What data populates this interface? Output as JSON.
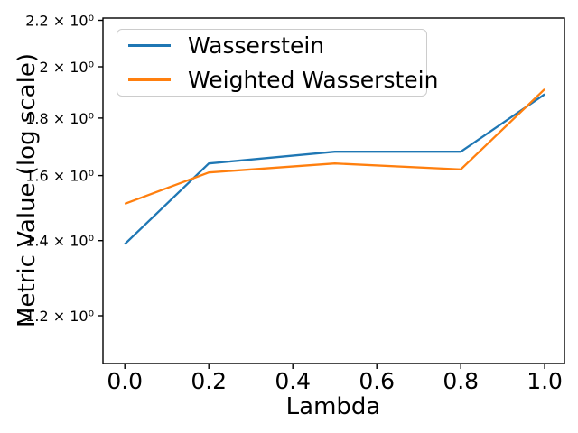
{
  "chart_data": {
    "type": "line",
    "title": "",
    "xlabel": "Lambda",
    "ylabel": "Metric Value (log scale)",
    "yscale": "log",
    "grid": false,
    "x": [
      0.0,
      0.2,
      0.5,
      0.8,
      1.0
    ],
    "series": [
      {
        "name": "Wasserstein",
        "color": "#1f77b4",
        "values": [
          1.39,
          1.64,
          1.68,
          1.68,
          1.89
        ]
      },
      {
        "name": "Weighted Wasserstein",
        "color": "#ff7f0e",
        "values": [
          1.51,
          1.61,
          1.64,
          1.62,
          1.91
        ]
      }
    ],
    "xlim": [
      -0.052,
      1.047
    ],
    "ylim": [
      1.088,
      2.21
    ],
    "xticks": {
      "values": [
        0.0,
        0.2,
        0.4,
        0.6,
        0.8,
        1.0
      ],
      "labels": [
        "0.0",
        "0.2",
        "0.4",
        "0.6",
        "0.8",
        "1.0"
      ]
    },
    "yticks": {
      "values": [
        1.2,
        1.4,
        1.6,
        1.8,
        2.0,
        2.2
      ],
      "labels": [
        "1.2 × 10⁰",
        "1.4 × 10⁰",
        "1.6 × 10⁰",
        "1.8 × 10⁰",
        "2 × 10⁰",
        "2.2 × 10⁰"
      ]
    },
    "legend": {
      "position": "upper-left",
      "entries": [
        "Wasserstein",
        "Weighted Wasserstein"
      ]
    }
  }
}
